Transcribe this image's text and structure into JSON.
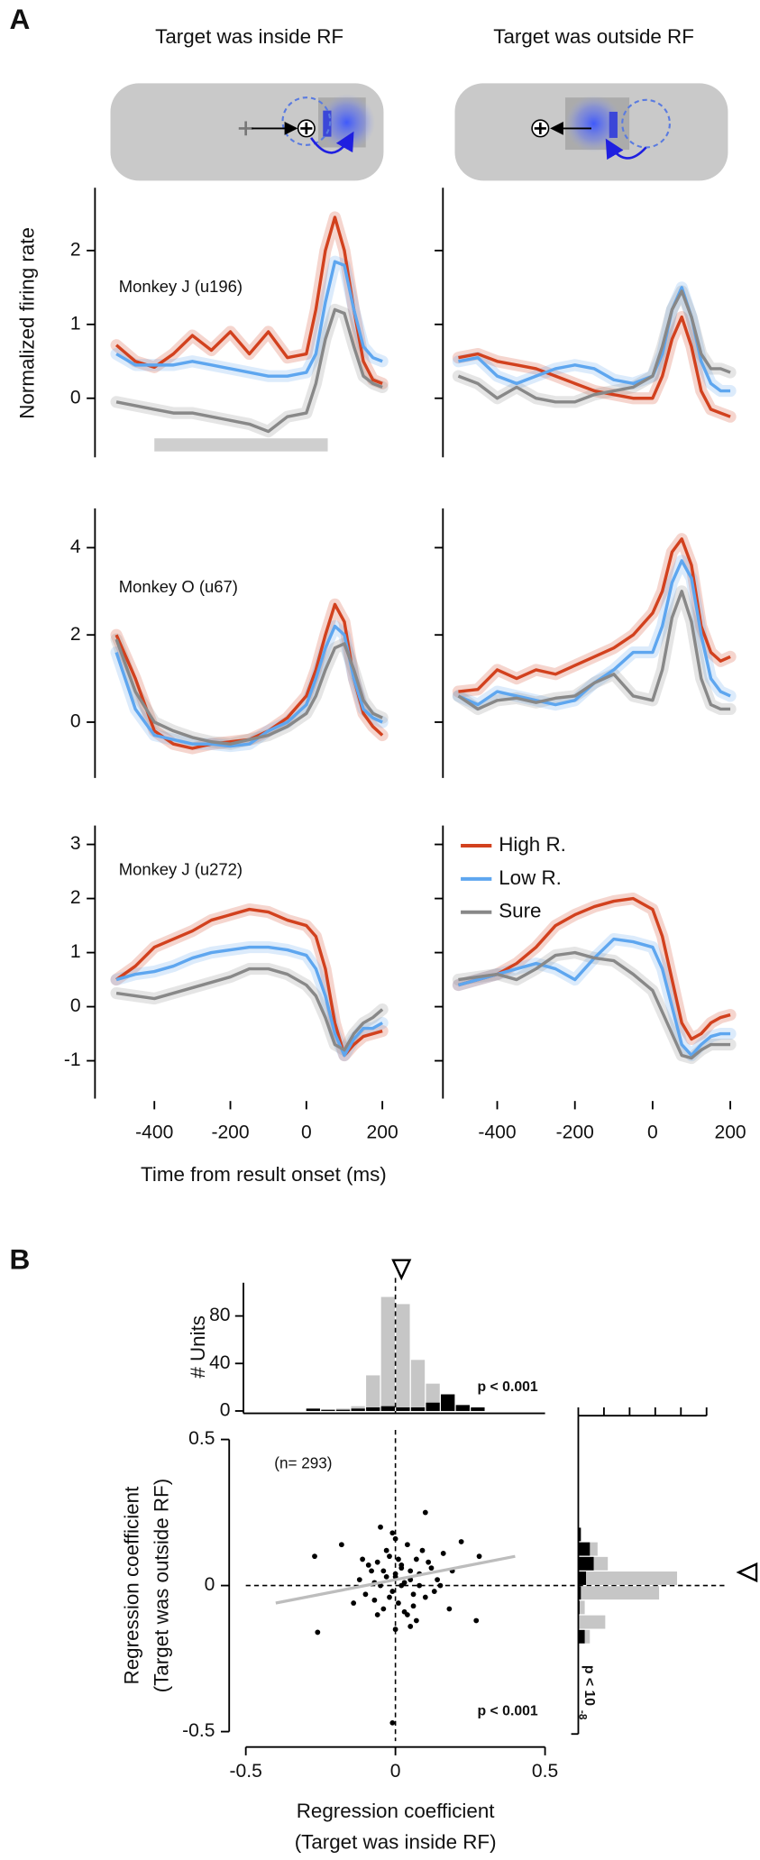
{
  "panel_labels": [
    "A",
    "B"
  ],
  "column_titles": [
    "Target was inside RF",
    "Target was outside RF"
  ],
  "ylabel": "Normalized firing rate",
  "xlabel": "Time from result onset (ms)",
  "chart_data": [
    {
      "type": "line",
      "annotation": "Monkey J (u196)",
      "x": [
        -500,
        -450,
        -400,
        -350,
        -300,
        -250,
        -200,
        -150,
        -100,
        -50,
        0,
        25,
        50,
        75,
        100,
        125,
        150,
        175,
        200
      ],
      "xlim": [
        -500,
        200
      ],
      "ylim": [
        -0.8,
        2.85
      ],
      "yticks": [
        0,
        1,
        2
      ],
      "ytick_labels": true,
      "series": [
        {
          "color": "#d2411e",
          "values": [
            0.72,
            0.5,
            0.42,
            0.6,
            0.85,
            0.65,
            0.9,
            0.6,
            0.9,
            0.55,
            0.6,
            1.2,
            2.0,
            2.45,
            2.0,
            1.2,
            0.5,
            0.25,
            0.2
          ]
        },
        {
          "color": "#5ea6ef",
          "values": [
            0.6,
            0.45,
            0.45,
            0.45,
            0.5,
            0.45,
            0.4,
            0.35,
            0.3,
            0.3,
            0.35,
            0.6,
            1.3,
            1.85,
            1.8,
            1.2,
            0.7,
            0.55,
            0.5
          ]
        },
        {
          "color": "#888888",
          "values": [
            -0.05,
            -0.1,
            -0.15,
            -0.2,
            -0.2,
            -0.25,
            -0.3,
            -0.35,
            -0.45,
            -0.25,
            -0.2,
            0.2,
            0.8,
            1.2,
            1.15,
            0.7,
            0.3,
            0.2,
            0.15
          ]
        }
      ]
    },
    {
      "type": "line",
      "x": [
        -500,
        -450,
        -400,
        -350,
        -300,
        -250,
        -200,
        -150,
        -100,
        -50,
        0,
        25,
        50,
        75,
        100,
        125,
        150,
        175,
        200
      ],
      "xlim": [
        -500,
        200
      ],
      "ylim": [
        -0.8,
        2.85
      ],
      "yticks": [
        0,
        1,
        2
      ],
      "ytick_labels": false,
      "series": [
        {
          "color": "#d2411e",
          "values": [
            0.55,
            0.6,
            0.5,
            0.45,
            0.4,
            0.3,
            0.2,
            0.1,
            0.05,
            0.0,
            0.0,
            0.3,
            0.8,
            1.1,
            0.7,
            0.1,
            -0.15,
            -0.2,
            -0.25
          ]
        },
        {
          "color": "#5ea6ef",
          "values": [
            0.5,
            0.55,
            0.3,
            0.2,
            0.3,
            0.4,
            0.45,
            0.4,
            0.25,
            0.2,
            0.3,
            0.6,
            1.2,
            1.5,
            1.1,
            0.5,
            0.2,
            0.1,
            0.1
          ]
        },
        {
          "color": "#888888",
          "values": [
            0.3,
            0.2,
            0.0,
            0.15,
            0.0,
            -0.05,
            -0.05,
            0.05,
            0.1,
            0.15,
            0.3,
            0.7,
            1.2,
            1.45,
            1.1,
            0.6,
            0.4,
            0.4,
            0.35
          ]
        }
      ]
    },
    {
      "type": "line",
      "annotation": "Monkey O (u67)",
      "x": [
        -500,
        -450,
        -400,
        -350,
        -300,
        -250,
        -200,
        -150,
        -100,
        -50,
        0,
        25,
        50,
        75,
        100,
        125,
        150,
        175,
        200
      ],
      "xlim": [
        -500,
        200
      ],
      "ylim": [
        -1.28,
        4.9
      ],
      "yticks": [
        0,
        2,
        4
      ],
      "ytick_labels": true,
      "series": [
        {
          "color": "#d2411e",
          "values": [
            2.0,
            1.0,
            -0.2,
            -0.5,
            -0.6,
            -0.5,
            -0.45,
            -0.4,
            -0.2,
            0.1,
            0.6,
            1.2,
            2.0,
            2.7,
            2.3,
            1.0,
            0.2,
            -0.1,
            -0.3
          ]
        },
        {
          "color": "#5ea6ef",
          "values": [
            1.6,
            0.3,
            -0.3,
            -0.4,
            -0.5,
            -0.5,
            -0.55,
            -0.5,
            -0.2,
            0.0,
            0.4,
            1.0,
            1.7,
            2.2,
            2.0,
            1.0,
            0.3,
            0.1,
            0.0
          ]
        },
        {
          "color": "#888888",
          "values": [
            1.9,
            0.7,
            0.0,
            -0.2,
            -0.35,
            -0.45,
            -0.5,
            -0.4,
            -0.3,
            -0.1,
            0.2,
            0.6,
            1.2,
            1.7,
            1.8,
            1.2,
            0.5,
            0.2,
            0.1
          ]
        }
      ]
    },
    {
      "type": "line",
      "x": [
        -500,
        -450,
        -400,
        -350,
        -300,
        -250,
        -200,
        -150,
        -100,
        -50,
        0,
        25,
        50,
        75,
        100,
        125,
        150,
        175,
        200
      ],
      "xlim": [
        -500,
        200
      ],
      "ylim": [
        -1.28,
        4.9
      ],
      "yticks": [
        0,
        2,
        4
      ],
      "ytick_labels": false,
      "series": [
        {
          "color": "#d2411e",
          "values": [
            0.7,
            0.75,
            1.2,
            1.0,
            1.2,
            1.1,
            1.3,
            1.5,
            1.7,
            2.0,
            2.5,
            3.0,
            3.9,
            4.2,
            3.6,
            2.2,
            1.6,
            1.4,
            1.5
          ]
        },
        {
          "color": "#5ea6ef",
          "values": [
            0.6,
            0.4,
            0.7,
            0.6,
            0.5,
            0.4,
            0.5,
            0.9,
            1.2,
            1.6,
            1.6,
            2.2,
            3.2,
            3.7,
            3.3,
            2.0,
            1.0,
            0.7,
            0.6
          ]
        },
        {
          "color": "#888888",
          "values": [
            0.6,
            0.3,
            0.5,
            0.55,
            0.45,
            0.55,
            0.6,
            0.9,
            1.1,
            0.6,
            0.5,
            1.2,
            2.4,
            3.0,
            2.3,
            1.0,
            0.4,
            0.3,
            0.3
          ]
        }
      ]
    },
    {
      "type": "line",
      "annotation": "Monkey J (u272)",
      "x": [
        -500,
        -450,
        -400,
        -350,
        -300,
        -250,
        -200,
        -150,
        -100,
        -50,
        0,
        25,
        50,
        75,
        100,
        125,
        150,
        175,
        200
      ],
      "xlim": [
        -500,
        200
      ],
      "xticks": [
        -400,
        -200,
        0,
        200
      ],
      "ylim": [
        -1.7,
        3.35
      ],
      "yticks": [
        -1,
        0,
        1,
        2,
        3
      ],
      "ytick_labels": true,
      "series": [
        {
          "color": "#d2411e",
          "values": [
            0.5,
            0.75,
            1.1,
            1.25,
            1.4,
            1.6,
            1.7,
            1.8,
            1.75,
            1.6,
            1.5,
            1.3,
            0.7,
            -0.3,
            -0.9,
            -0.7,
            -0.55,
            -0.5,
            -0.45
          ]
        },
        {
          "color": "#5ea6ef",
          "values": [
            0.5,
            0.6,
            0.65,
            0.75,
            0.9,
            1.0,
            1.05,
            1.1,
            1.1,
            1.05,
            0.95,
            0.7,
            0.2,
            -0.5,
            -0.9,
            -0.6,
            -0.4,
            -0.4,
            -0.3
          ]
        },
        {
          "color": "#888888",
          "values": [
            0.25,
            0.2,
            0.15,
            0.25,
            0.35,
            0.45,
            0.55,
            0.7,
            0.7,
            0.6,
            0.4,
            0.2,
            -0.2,
            -0.7,
            -0.8,
            -0.5,
            -0.3,
            -0.2,
            -0.05
          ]
        }
      ]
    },
    {
      "type": "line",
      "legend": "upper left",
      "x": [
        -500,
        -450,
        -400,
        -350,
        -300,
        -250,
        -200,
        -150,
        -100,
        -50,
        0,
        25,
        50,
        75,
        100,
        125,
        150,
        175,
        200
      ],
      "xlim": [
        -500,
        200
      ],
      "xticks": [
        -400,
        -200,
        0,
        200
      ],
      "ylim": [
        -1.7,
        3.35
      ],
      "yticks": [
        -1,
        0,
        1,
        2,
        3
      ],
      "ytick_labels": false,
      "series": [
        {
          "name": "High R.",
          "color": "#d2411e",
          "values": [
            0.4,
            0.5,
            0.6,
            0.8,
            1.1,
            1.5,
            1.7,
            1.85,
            1.95,
            2.0,
            1.8,
            1.3,
            0.5,
            -0.3,
            -0.6,
            -0.5,
            -0.3,
            -0.2,
            -0.15
          ]
        },
        {
          "name": "Low R.",
          "color": "#5ea6ef",
          "values": [
            0.4,
            0.5,
            0.6,
            0.7,
            0.8,
            0.7,
            0.5,
            0.9,
            1.25,
            1.2,
            1.1,
            0.7,
            0.0,
            -0.7,
            -0.9,
            -0.7,
            -0.55,
            -0.5,
            -0.5
          ]
        },
        {
          "name": "Sure",
          "color": "#888888",
          "values": [
            0.5,
            0.55,
            0.6,
            0.5,
            0.7,
            0.95,
            1.0,
            0.9,
            0.85,
            0.6,
            0.3,
            -0.1,
            -0.5,
            -0.9,
            -0.95,
            -0.8,
            -0.7,
            -0.7,
            -0.7
          ]
        }
      ]
    },
    {
      "type": "histogram",
      "ylabel": "# Units",
      "annotation": "p < 0.001",
      "mean": 0.02,
      "refline_x": 0,
      "bins": [
        -0.3,
        -0.25,
        -0.2,
        -0.15,
        -0.1,
        -0.05,
        0,
        0.05,
        0.1,
        0.15,
        0.2,
        0.25,
        0.3
      ],
      "xlim": [
        -0.5,
        0.5
      ],
      "ylim": [
        0,
        108
      ],
      "yticks": [
        0,
        40,
        80
      ],
      "series": [
        {
          "color": "#c6c6c6",
          "values": [
            1,
            1,
            2,
            4,
            30,
            96,
            90,
            43,
            23,
            14,
            4,
            2
          ]
        },
        {
          "color": "#000000",
          "values": [
            2,
            1,
            1,
            2,
            3,
            4,
            3,
            3,
            7,
            14,
            5,
            3
          ]
        }
      ]
    },
    {
      "type": "scatter",
      "color": "#000000",
      "xlabel": [
        "Regression coefficient",
        "(Target was inside RF)"
      ],
      "ylabel": [
        "Regression coefficient",
        "(Target was outside RF)"
      ],
      "annotations": [
        "(n= 293)",
        "p < 0.001"
      ],
      "xlim": [
        -0.5,
        0.5
      ],
      "ylim": [
        -0.5,
        0.5
      ],
      "xticks": [
        -0.5,
        0,
        0.5
      ],
      "yticks": [
        -0.5,
        0,
        0.5
      ],
      "refline_x": 0,
      "refline_y": 0,
      "fit": {
        "color": "#bdbdbd",
        "x": [
          -0.4,
          0.4
        ],
        "y": [
          -0.06,
          0.1
        ]
      },
      "x": [
        -0.26,
        -0.27,
        0.27,
        0.28,
        -0.01,
        0.22,
        -0.18,
        0.18,
        0.1,
        -0.05,
        0.0,
        -0.12,
        -0.1,
        -0.08,
        -0.07,
        -0.06,
        -0.05,
        -0.04,
        -0.03,
        -0.02,
        -0.01,
        0.0,
        0.01,
        0.02,
        0.03,
        0.04,
        0.05,
        0.06,
        0.07,
        0.08,
        0.09,
        0.1,
        0.12,
        0.14,
        0.16,
        -0.09,
        -0.06,
        -0.03,
        0.0,
        0.02,
        0.04,
        0.06,
        0.08,
        0.11,
        0.13,
        -0.04,
        -0.02,
        0.01,
        0.03,
        0.05,
        0.07,
        -0.07,
        -0.11,
        0.15,
        0.19,
        -0.14,
        0.0,
        0.02,
        -0.01,
        0.05
      ],
      "y": [
        -0.16,
        0.1,
        -0.12,
        0.1,
        -0.47,
        0.15,
        0.14,
        -0.08,
        0.25,
        0.2,
        0.16,
        0.02,
        -0.03,
        0.05,
        -0.05,
        0.08,
        0.0,
        -0.08,
        0.03,
        0.1,
        -0.02,
        0.04,
        -0.06,
        0.07,
        0.01,
        -0.1,
        0.05,
        -0.03,
        0.09,
        0.0,
        0.12,
        -0.04,
        0.06,
        0.02,
        0.11,
        0.07,
        -0.1,
        0.12,
        -0.15,
        0.0,
        0.14,
        -0.07,
        0.04,
        0.08,
        -0.02,
        0.05,
        -0.04,
        0.09,
        -0.09,
        0.02,
        -0.12,
        0.01,
        0.09,
        0.0,
        0.05,
        -0.06,
        0.03,
        0.06,
        0.18,
        -0.14
      ]
    },
    {
      "type": "histogram-horizontal",
      "annotation": "p < 10",
      "annotation_exponent": "-8",
      "mean": 0.045,
      "bins": [
        -0.2,
        -0.15,
        -0.1,
        -0.05,
        0,
        0.05,
        0.1,
        0.15,
        0.2
      ],
      "ylim": [
        -0.5,
        0.5
      ],
      "xlim": [
        0,
        100
      ],
      "xticks": [
        0,
        20,
        40,
        60,
        80,
        100
      ],
      "xtick_labels": false,
      "series": [
        {
          "color": "#c6c6c6",
          "values": [
            9,
            21,
            5,
            63,
            77,
            23,
            15,
            2
          ]
        },
        {
          "color": "#000000",
          "values": [
            5,
            0,
            1,
            2,
            6,
            12,
            9,
            2
          ]
        }
      ]
    }
  ]
}
